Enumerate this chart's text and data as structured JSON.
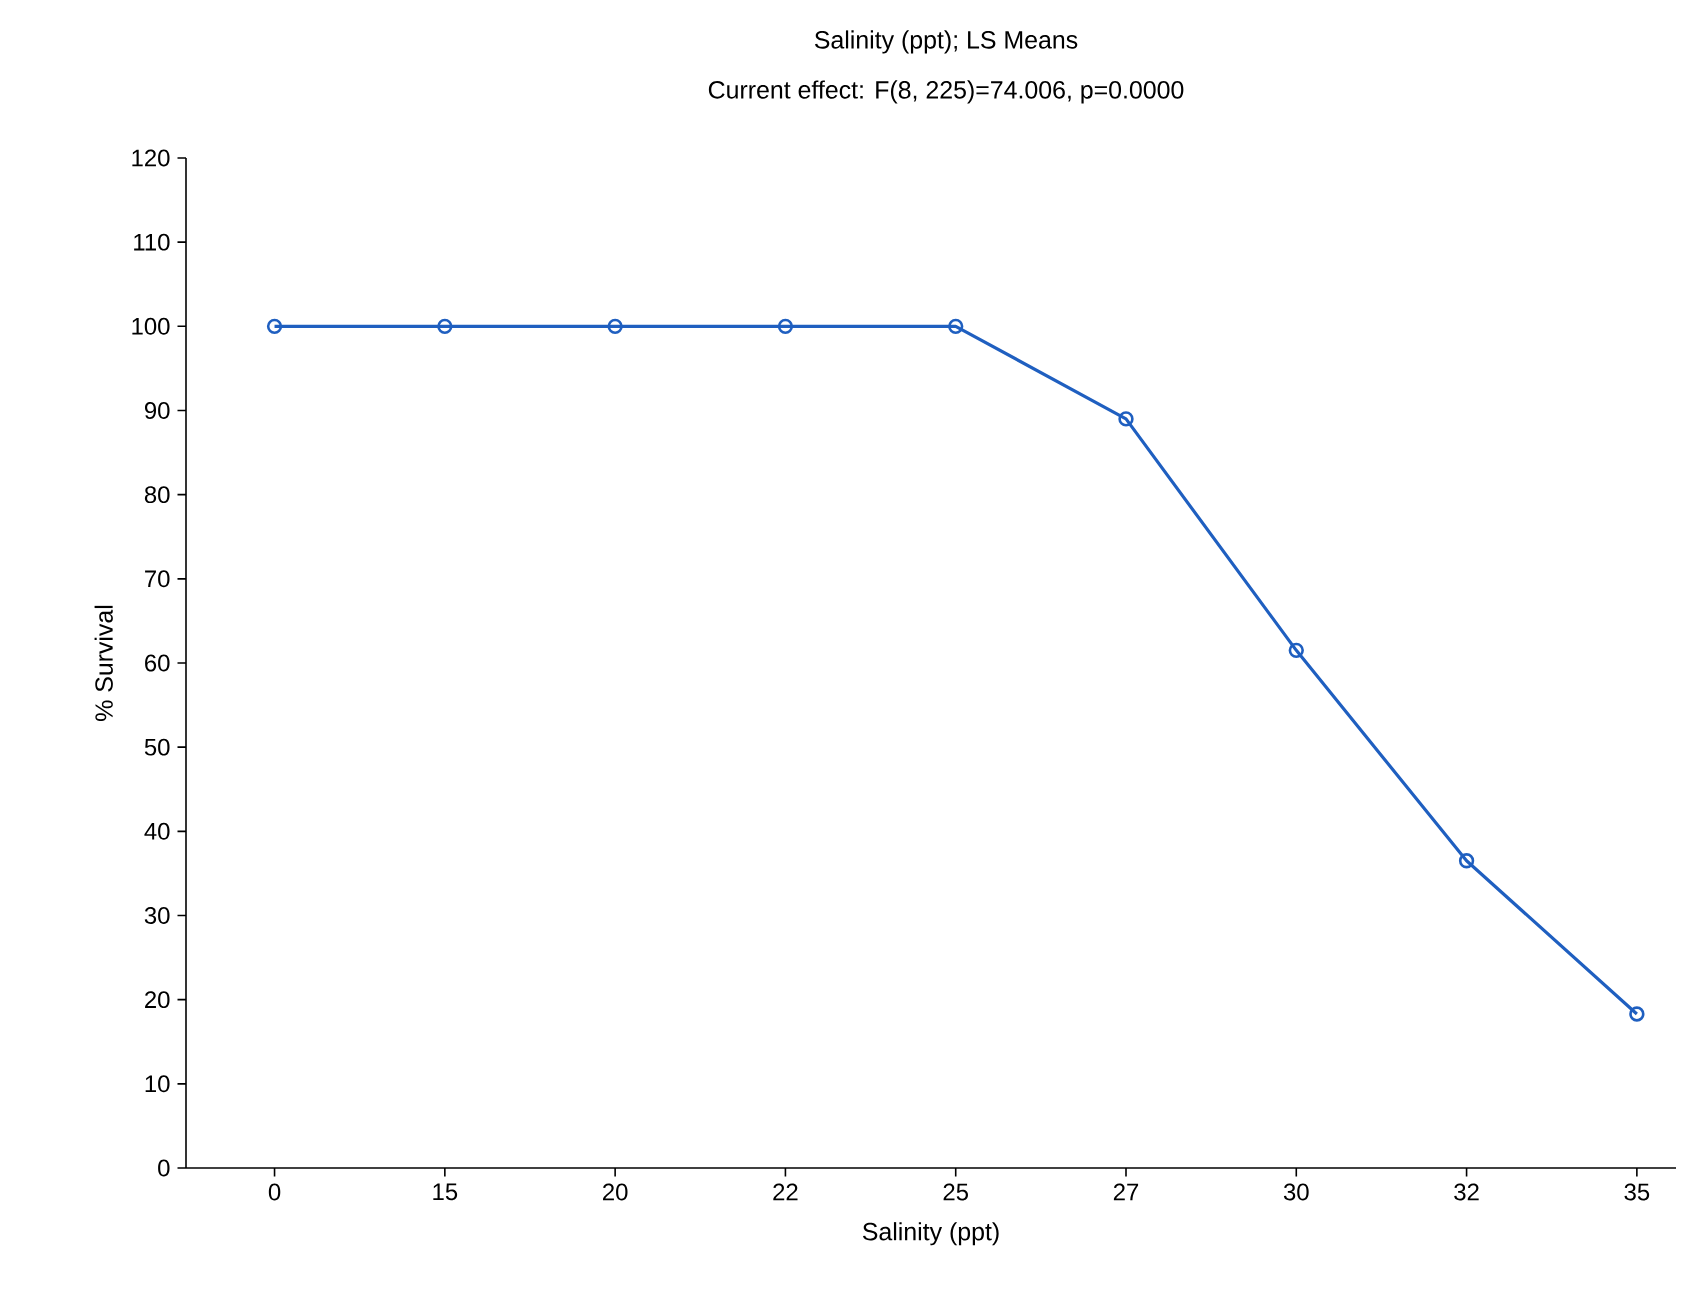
{
  "chart_data": {
    "type": "line",
    "title": "Salinity (ppt); LS Means",
    "subtitle": "Current effect: F(8, 225)=74.006, p=0.0000",
    "xlabel": "Salinity (ppt)",
    "ylabel": "% Survival",
    "categories": [
      "0",
      "15",
      "20",
      "22",
      "25",
      "27",
      "30",
      "32",
      "35"
    ],
    "series": [
      {
        "color": "#1f5fc0",
        "values": [
          100,
          100,
          100,
          100,
          100,
          89,
          61.5,
          36.5,
          18.3
        ]
      }
    ],
    "ylim": [
      0,
      120
    ],
    "yticks": [
      0,
      10,
      20,
      30,
      40,
      50,
      60,
      70,
      80,
      90,
      100,
      110,
      120
    ],
    "grid": false,
    "marker": "circle",
    "line_style": "solid"
  }
}
